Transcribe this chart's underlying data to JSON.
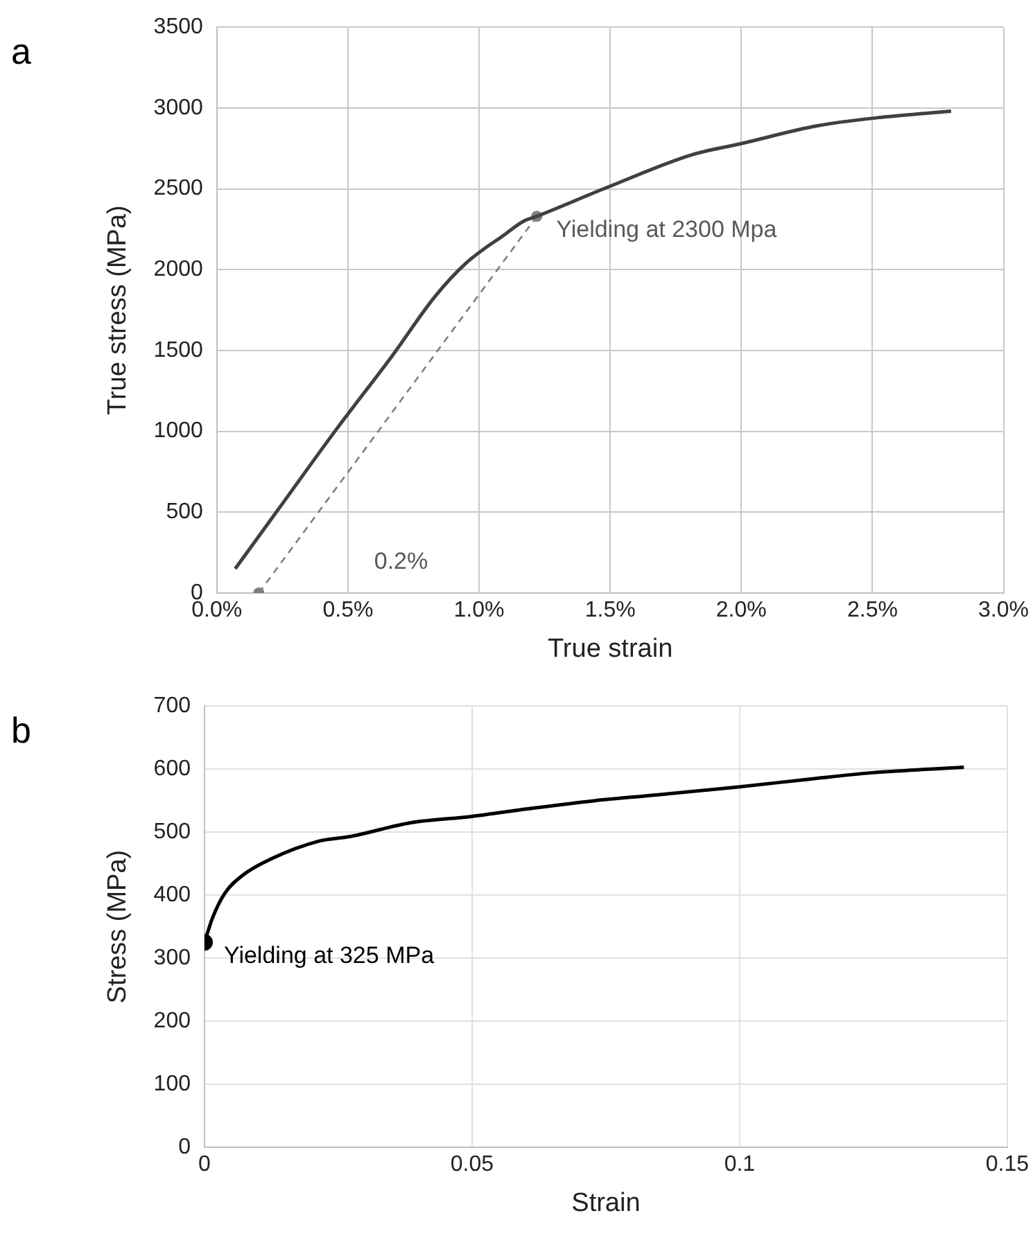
{
  "chart_data": [
    {
      "type": "line",
      "title": "a",
      "xlabel": "True strain",
      "ylabel": "True stress (MPa)",
      "xlim": [
        0,
        3
      ],
      "xticks": [
        {
          "value": 0,
          "label": "0.0%"
        },
        {
          "value": 0.5,
          "label": "0.5%"
        },
        {
          "value": 1,
          "label": "1.0%"
        },
        {
          "value": 1.5,
          "label": "1.5%"
        },
        {
          "value": 2,
          "label": "2.0%"
        },
        {
          "value": 2.5,
          "label": "2.5%"
        },
        {
          "value": 3,
          "label": "3.0%"
        }
      ],
      "ylim": [
        0,
        3500
      ],
      "yticks": [
        0,
        500,
        1000,
        1500,
        2000,
        2500,
        3000,
        3500
      ],
      "grid": true,
      "series": [
        {
          "color": "#404040",
          "marker": "none",
          "line_style": "solid",
          "x": [
            0.07,
            0.24,
            0.45,
            0.67,
            0.83,
            0.95,
            1.1,
            1.17,
            1.22,
            1.49,
            1.81,
            2.0,
            2.29,
            2.52,
            2.8
          ],
          "values": [
            150,
            530,
            1000,
            1470,
            1830,
            2040,
            2220,
            2300,
            2330,
            2510,
            2710,
            2780,
            2890,
            2940,
            2980
          ]
        },
        {
          "color": "#7f7f7f",
          "marker": "circle",
          "line_style": "dashed",
          "x": [
            0.16,
            1.22
          ],
          "values": [
            0,
            2330
          ]
        }
      ],
      "annotations": [
        {
          "text": "Yielding at 2300 Mpa",
          "x": 1.22,
          "y": 2330
        },
        "0.2%"
      ]
    },
    {
      "type": "line",
      "title": "b",
      "xlabel": "Strain",
      "ylabel": "Stress (MPa)",
      "xlim": [
        0,
        0.15
      ],
      "xticks": [
        0,
        0.05,
        0.1,
        0.15
      ],
      "ylim": [
        0,
        700
      ],
      "yticks": [
        0,
        100,
        200,
        300,
        400,
        500,
        600,
        700
      ],
      "grid": true,
      "series": [
        {
          "color": "#000000",
          "marker": "none",
          "line_style": "solid",
          "x": [
            0,
            0.0015,
            0.0038,
            0.0072,
            0.0123,
            0.0215,
            0.0272,
            0.0386,
            0.05,
            0.0604,
            0.073,
            0.0844,
            0.1,
            0.113,
            0.1244,
            0.1419
          ],
          "values": [
            325,
            364,
            403,
            432,
            457,
            486,
            493,
            515,
            525,
            537,
            550,
            559,
            572,
            584,
            594,
            603
          ]
        },
        {
          "type": "scatter",
          "color": "#000000",
          "marker": "circle",
          "x": [
            0
          ],
          "values": [
            325
          ]
        }
      ],
      "annotations": [
        {
          "text": "Yielding at 325 MPa",
          "x": 0,
          "y": 325
        }
      ]
    }
  ]
}
